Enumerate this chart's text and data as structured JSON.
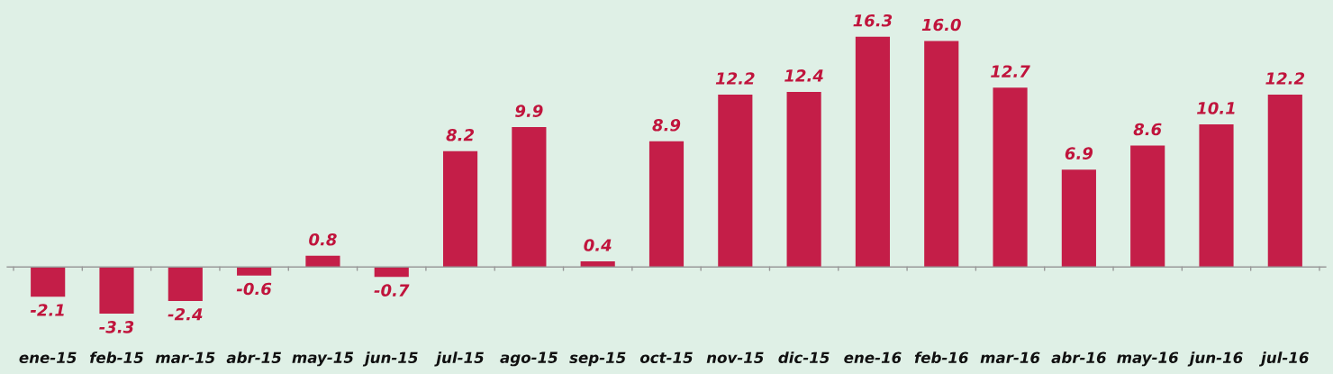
{
  "chart_data": {
    "type": "bar",
    "categories": [
      "ene-15",
      "feb-15",
      "mar-15",
      "abr-15",
      "may-15",
      "jun-15",
      "jul-15",
      "ago-15",
      "sep-15",
      "oct-15",
      "nov-15",
      "dic-15",
      "ene-16",
      "feb-16",
      "mar-16",
      "abr-16",
      "may-16",
      "jun-16",
      "jul-16"
    ],
    "values": [
      -2.1,
      -3.3,
      -2.4,
      -0.6,
      0.8,
      -0.7,
      8.2,
      9.9,
      0.4,
      8.9,
      12.2,
      12.4,
      16.3,
      16.0,
      12.7,
      6.9,
      8.6,
      10.1,
      12.2
    ],
    "color": "#c41e48",
    "value_labels": [
      "-2.1",
      "-3.3",
      "-2.4",
      "-0.6",
      "0.8",
      "-0.7",
      "8.2",
      "9.9",
      "0.4",
      "8.9",
      "12.2",
      "12.4",
      "16.3",
      "16.0",
      "12.7",
      "6.9",
      "8.6",
      "10.1",
      "12.2"
    ],
    "grid": false,
    "legend": false
  }
}
